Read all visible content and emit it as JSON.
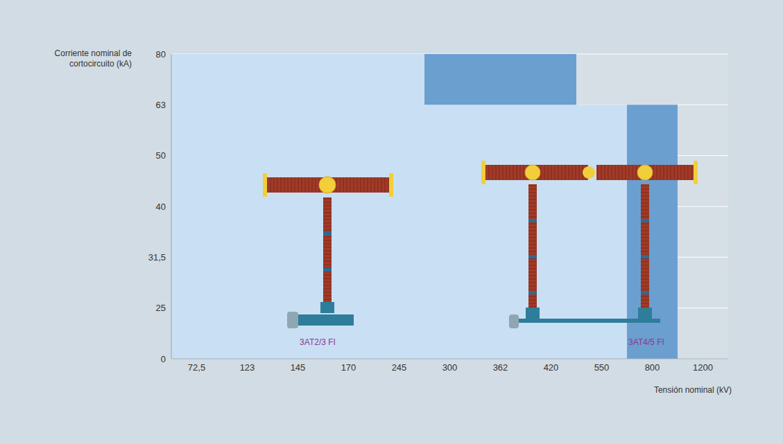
{
  "chart_data": {
    "type": "area",
    "x_label": "Tensión nominal (kV)",
    "y_label": "Corriente nominal de cortocircuito (kA)",
    "categories": [
      "72,5",
      "123",
      "145",
      "170",
      "245",
      "300",
      "362",
      "420",
      "550",
      "800",
      "1200"
    ],
    "ylim": [
      0,
      80
    ],
    "yticks": [
      0,
      25,
      {
        "value": 31.5,
        "label": "31,5"
      },
      40,
      50,
      63,
      80
    ],
    "grid": true,
    "regions": [
      {
        "x": [
          "72,5",
          "245"
        ],
        "y": [
          0,
          80
        ],
        "color": "#c9dff3"
      },
      {
        "x": [
          "300",
          "800"
        ],
        "y": [
          0,
          63
        ],
        "color": "#c9dff3"
      },
      {
        "x": [
          "300",
          "420"
        ],
        "y": [
          63,
          80
        ],
        "color": "#6b9fd0"
      },
      {
        "x": [
          "800",
          "800"
        ],
        "y": [
          0,
          63
        ],
        "color": "#6b9fd0"
      }
    ],
    "annotations": [
      {
        "text": "3AT2/3 FI",
        "color": "#8a3a8c"
      },
      {
        "text": "3AT4/5 FI",
        "color": "#8a3a8c"
      }
    ]
  }
}
